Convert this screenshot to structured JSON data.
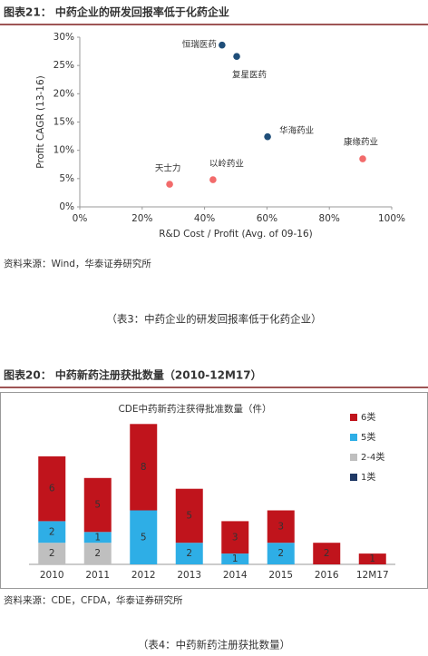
{
  "figures": [
    {
      "header": "图表21：  中药企业的研发回报率低于化药企业",
      "source": "资料来源：Wind，华泰证券研究所",
      "caption": "（表3：中药企业的研发回报率低于化药企业）"
    },
    {
      "header": "图表20：  中药新药注册获批数量（2010-12M17）",
      "source": "资料来源：CDE，CFDA，华泰证券研究所",
      "caption": "（表4：中药新药注册获批数量）"
    }
  ],
  "chart_data": [
    {
      "type": "scatter",
      "x_label": "R&D Cost / Profit (Avg. of 09-16)",
      "y_label": "Profit CAGR (13-16)",
      "labels": [
        "恒瑞医药",
        "复星医药",
        "华海药业",
        "康缘药业",
        "以岭药业",
        "天士力"
      ],
      "x": [
        45.6,
        50.3,
        60.2,
        90.7,
        42.7,
        28.8
      ],
      "y": [
        28.6,
        26.6,
        12.4,
        8.5,
        4.8,
        4.0
      ],
      "colors": [
        "#1f4e79",
        "#1f4e79",
        "#1f4e79",
        "#f26b6b",
        "#f26b6b",
        "#f26b6b"
      ],
      "xlim": [
        0,
        100
      ],
      "xticks": [
        {
          "value": 0,
          "label": "0%"
        },
        {
          "value": 20,
          "label": "20%"
        },
        {
          "value": 40,
          "label": "40%"
        },
        {
          "value": 60,
          "label": "60%"
        },
        {
          "value": 80,
          "label": "80%"
        },
        {
          "value": 100,
          "label": "100%"
        }
      ],
      "ylim": [
        0,
        30
      ],
      "yticks": [
        {
          "value": 0,
          "label": "0%"
        },
        {
          "value": 5,
          "label": "5%"
        },
        {
          "value": 10,
          "label": "10%"
        },
        {
          "value": 15,
          "label": "15%"
        },
        {
          "value": 20,
          "label": "20%"
        },
        {
          "value": 25,
          "label": "25%"
        },
        {
          "value": 30,
          "label": "30%"
        }
      ]
    },
    {
      "type": "stacked_bar",
      "title": "CDE中药新药注获得批准数量（件）",
      "categories": [
        "2010",
        "2011",
        "2012",
        "2013",
        "2014",
        "2015",
        "2016",
        "12M17"
      ],
      "series": [
        {
          "name": "6类",
          "color": "#c0141c",
          "values": [
            6,
            5,
            8,
            5,
            3,
            3,
            2,
            1
          ]
        },
        {
          "name": "5类",
          "color": "#2eaee6",
          "values": [
            2,
            1,
            5,
            2,
            1,
            2,
            null,
            null
          ]
        },
        {
          "name": "2-4类",
          "color": "#bfbfbf",
          "values": [
            2,
            2,
            null,
            null,
            null,
            null,
            null,
            null
          ]
        },
        {
          "name": "1类",
          "color": "#1f3864",
          "values": [
            null,
            null,
            null,
            null,
            null,
            null,
            null,
            null
          ]
        }
      ],
      "legend": "right"
    }
  ]
}
